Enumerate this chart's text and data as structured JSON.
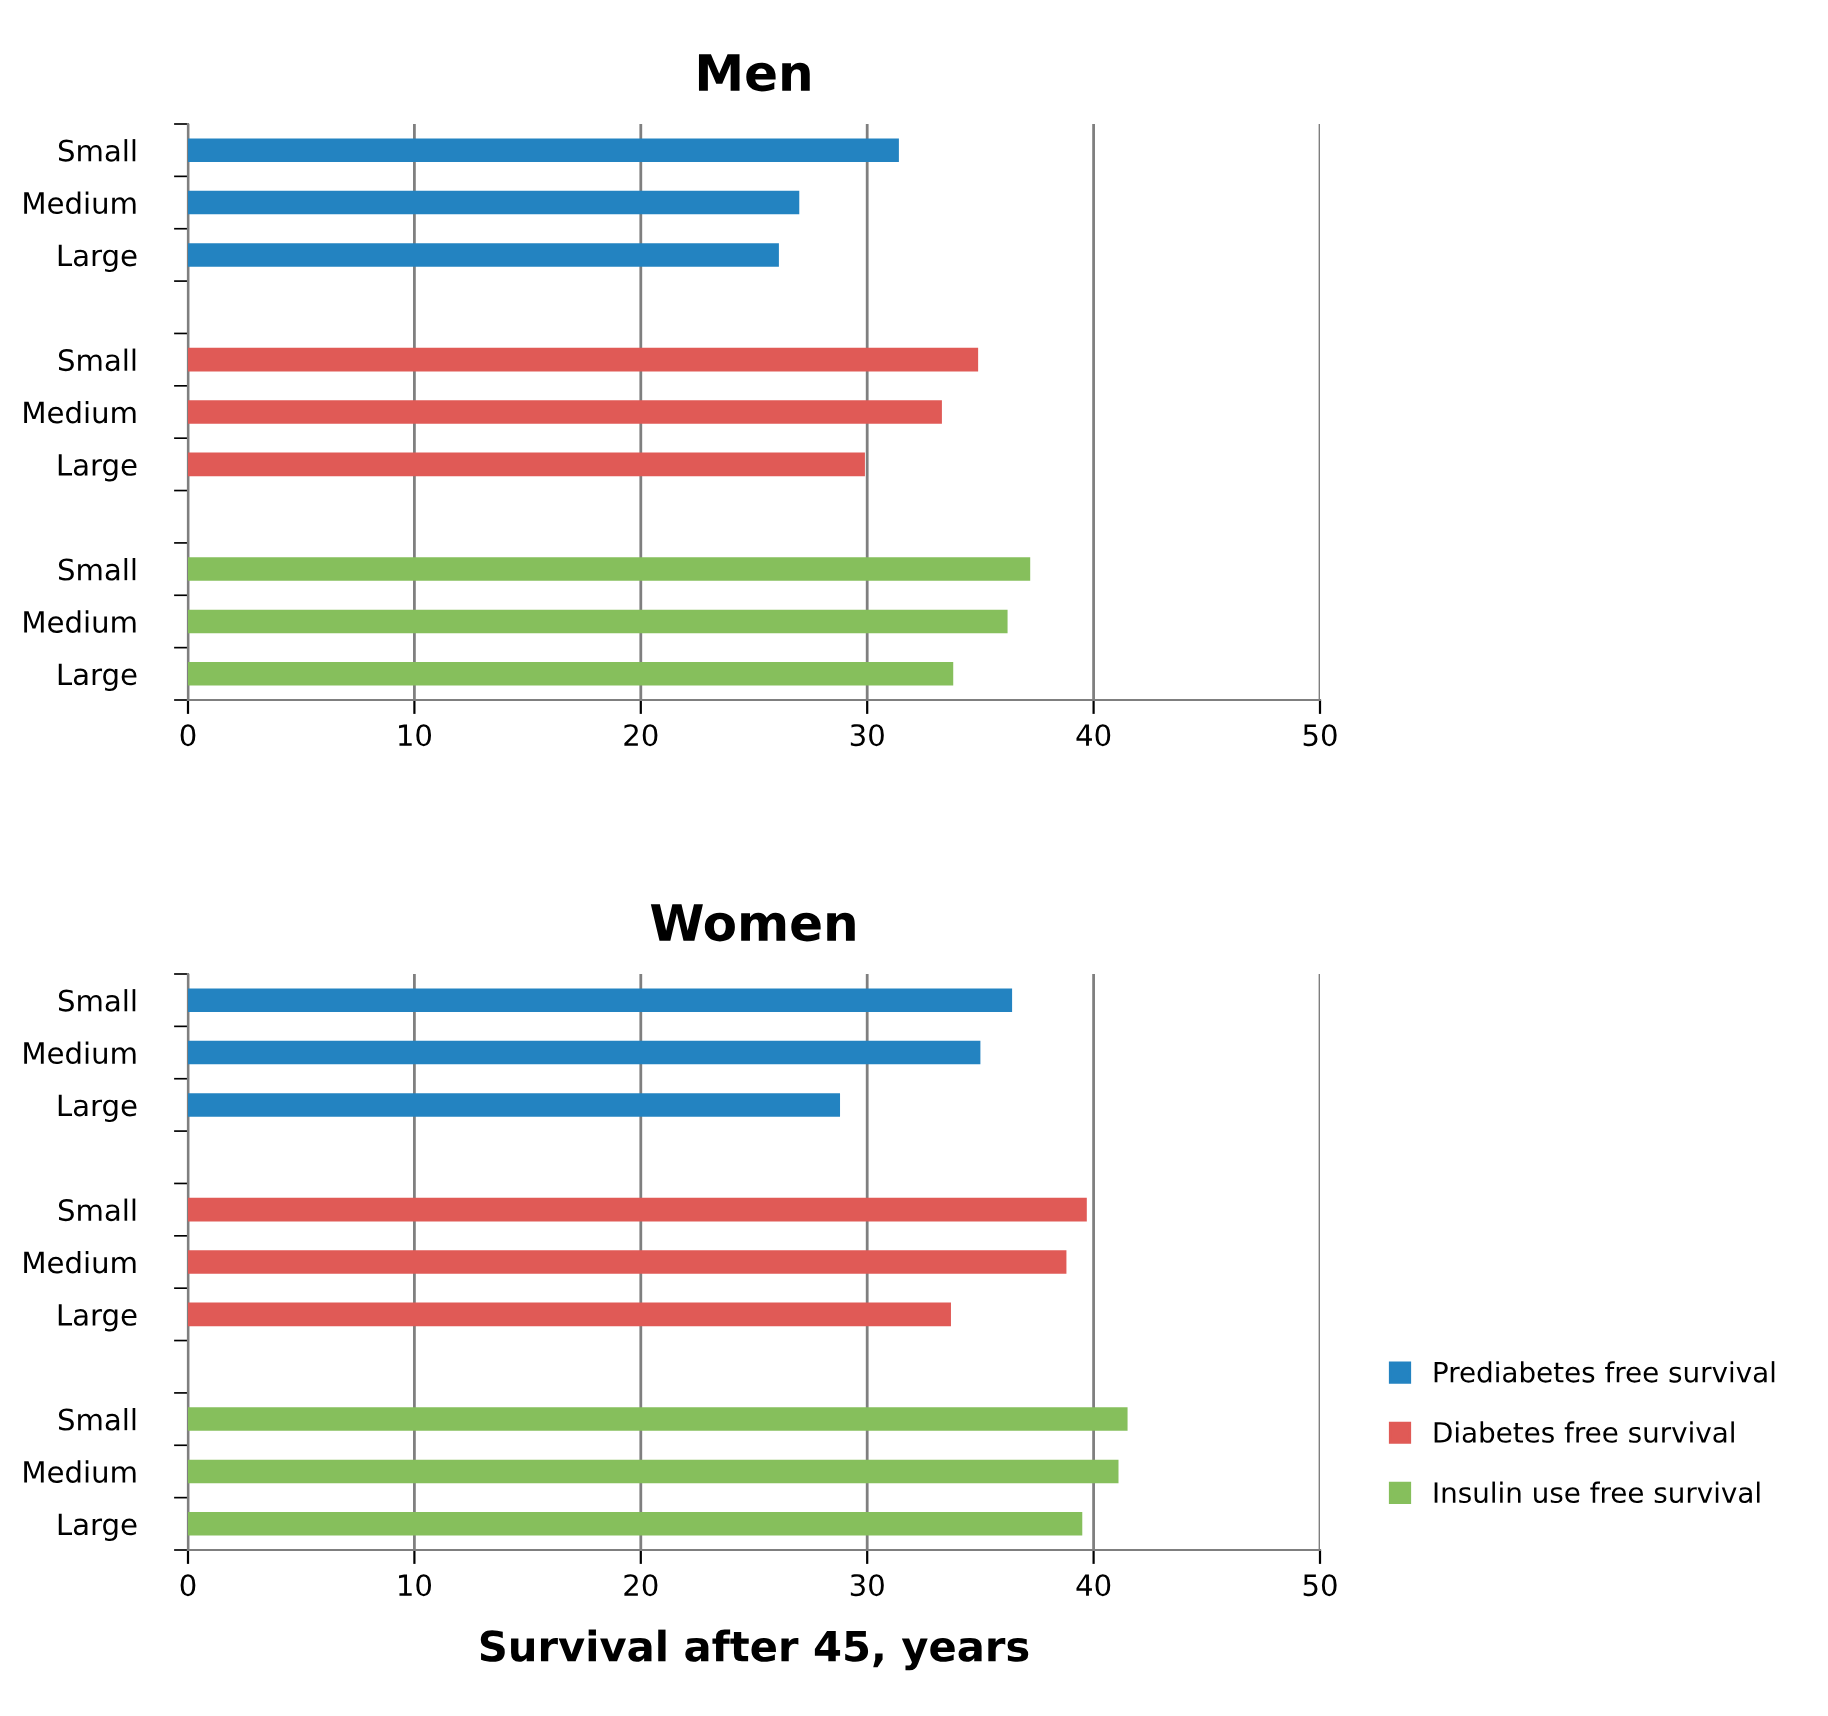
{
  "chart_data": [
    {
      "type": "bar",
      "orientation": "horizontal",
      "title": "Men",
      "categories": [
        "Small",
        "Medium",
        "Large",
        null,
        "Small",
        "Medium",
        "Large",
        null,
        "Small",
        "Medium",
        "Large"
      ],
      "series": [
        {
          "color": "#2383c1",
          "values": [
            31.4,
            27.0,
            26.1,
            null,
            null,
            null,
            null,
            null,
            null,
            null,
            null
          ]
        },
        {
          "color": "#e05a56",
          "values": [
            null,
            null,
            null,
            null,
            34.9,
            33.3,
            29.9,
            null,
            null,
            null,
            null
          ]
        },
        {
          "color": "#86bf5c",
          "values": [
            null,
            null,
            null,
            null,
            null,
            null,
            null,
            null,
            37.2,
            36.2,
            33.8
          ]
        }
      ],
      "xlim": [
        0,
        50
      ],
      "xticks": [
        0,
        10,
        20,
        30,
        40,
        50
      ],
      "grid": "x",
      "legend": false
    },
    {
      "type": "bar",
      "orientation": "horizontal",
      "title": "Women",
      "xlabel": "Survival after 45, years",
      "categories": [
        "Small",
        "Medium",
        "Large",
        null,
        "Small",
        "Medium",
        "Large",
        null,
        "Small",
        "Medium",
        "Large"
      ],
      "series": [
        {
          "name": "Prediabetes free survival",
          "color": "#2383c1",
          "values": [
            36.4,
            35.0,
            28.8,
            null,
            null,
            null,
            null,
            null,
            null,
            null,
            null
          ]
        },
        {
          "name": "Diabetes free survival",
          "color": "#e05a56",
          "values": [
            null,
            null,
            null,
            null,
            39.7,
            38.8,
            33.7,
            null,
            null,
            null,
            null
          ]
        },
        {
          "name": "Insulin use free survival",
          "color": "#86bf5c",
          "values": [
            null,
            null,
            null,
            null,
            null,
            null,
            null,
            null,
            41.5,
            41.1,
            39.5
          ]
        }
      ],
      "xlim": [
        0,
        50
      ],
      "xticks": [
        0,
        10,
        20,
        30,
        40,
        50
      ],
      "grid": "x",
      "legend": "right"
    }
  ]
}
